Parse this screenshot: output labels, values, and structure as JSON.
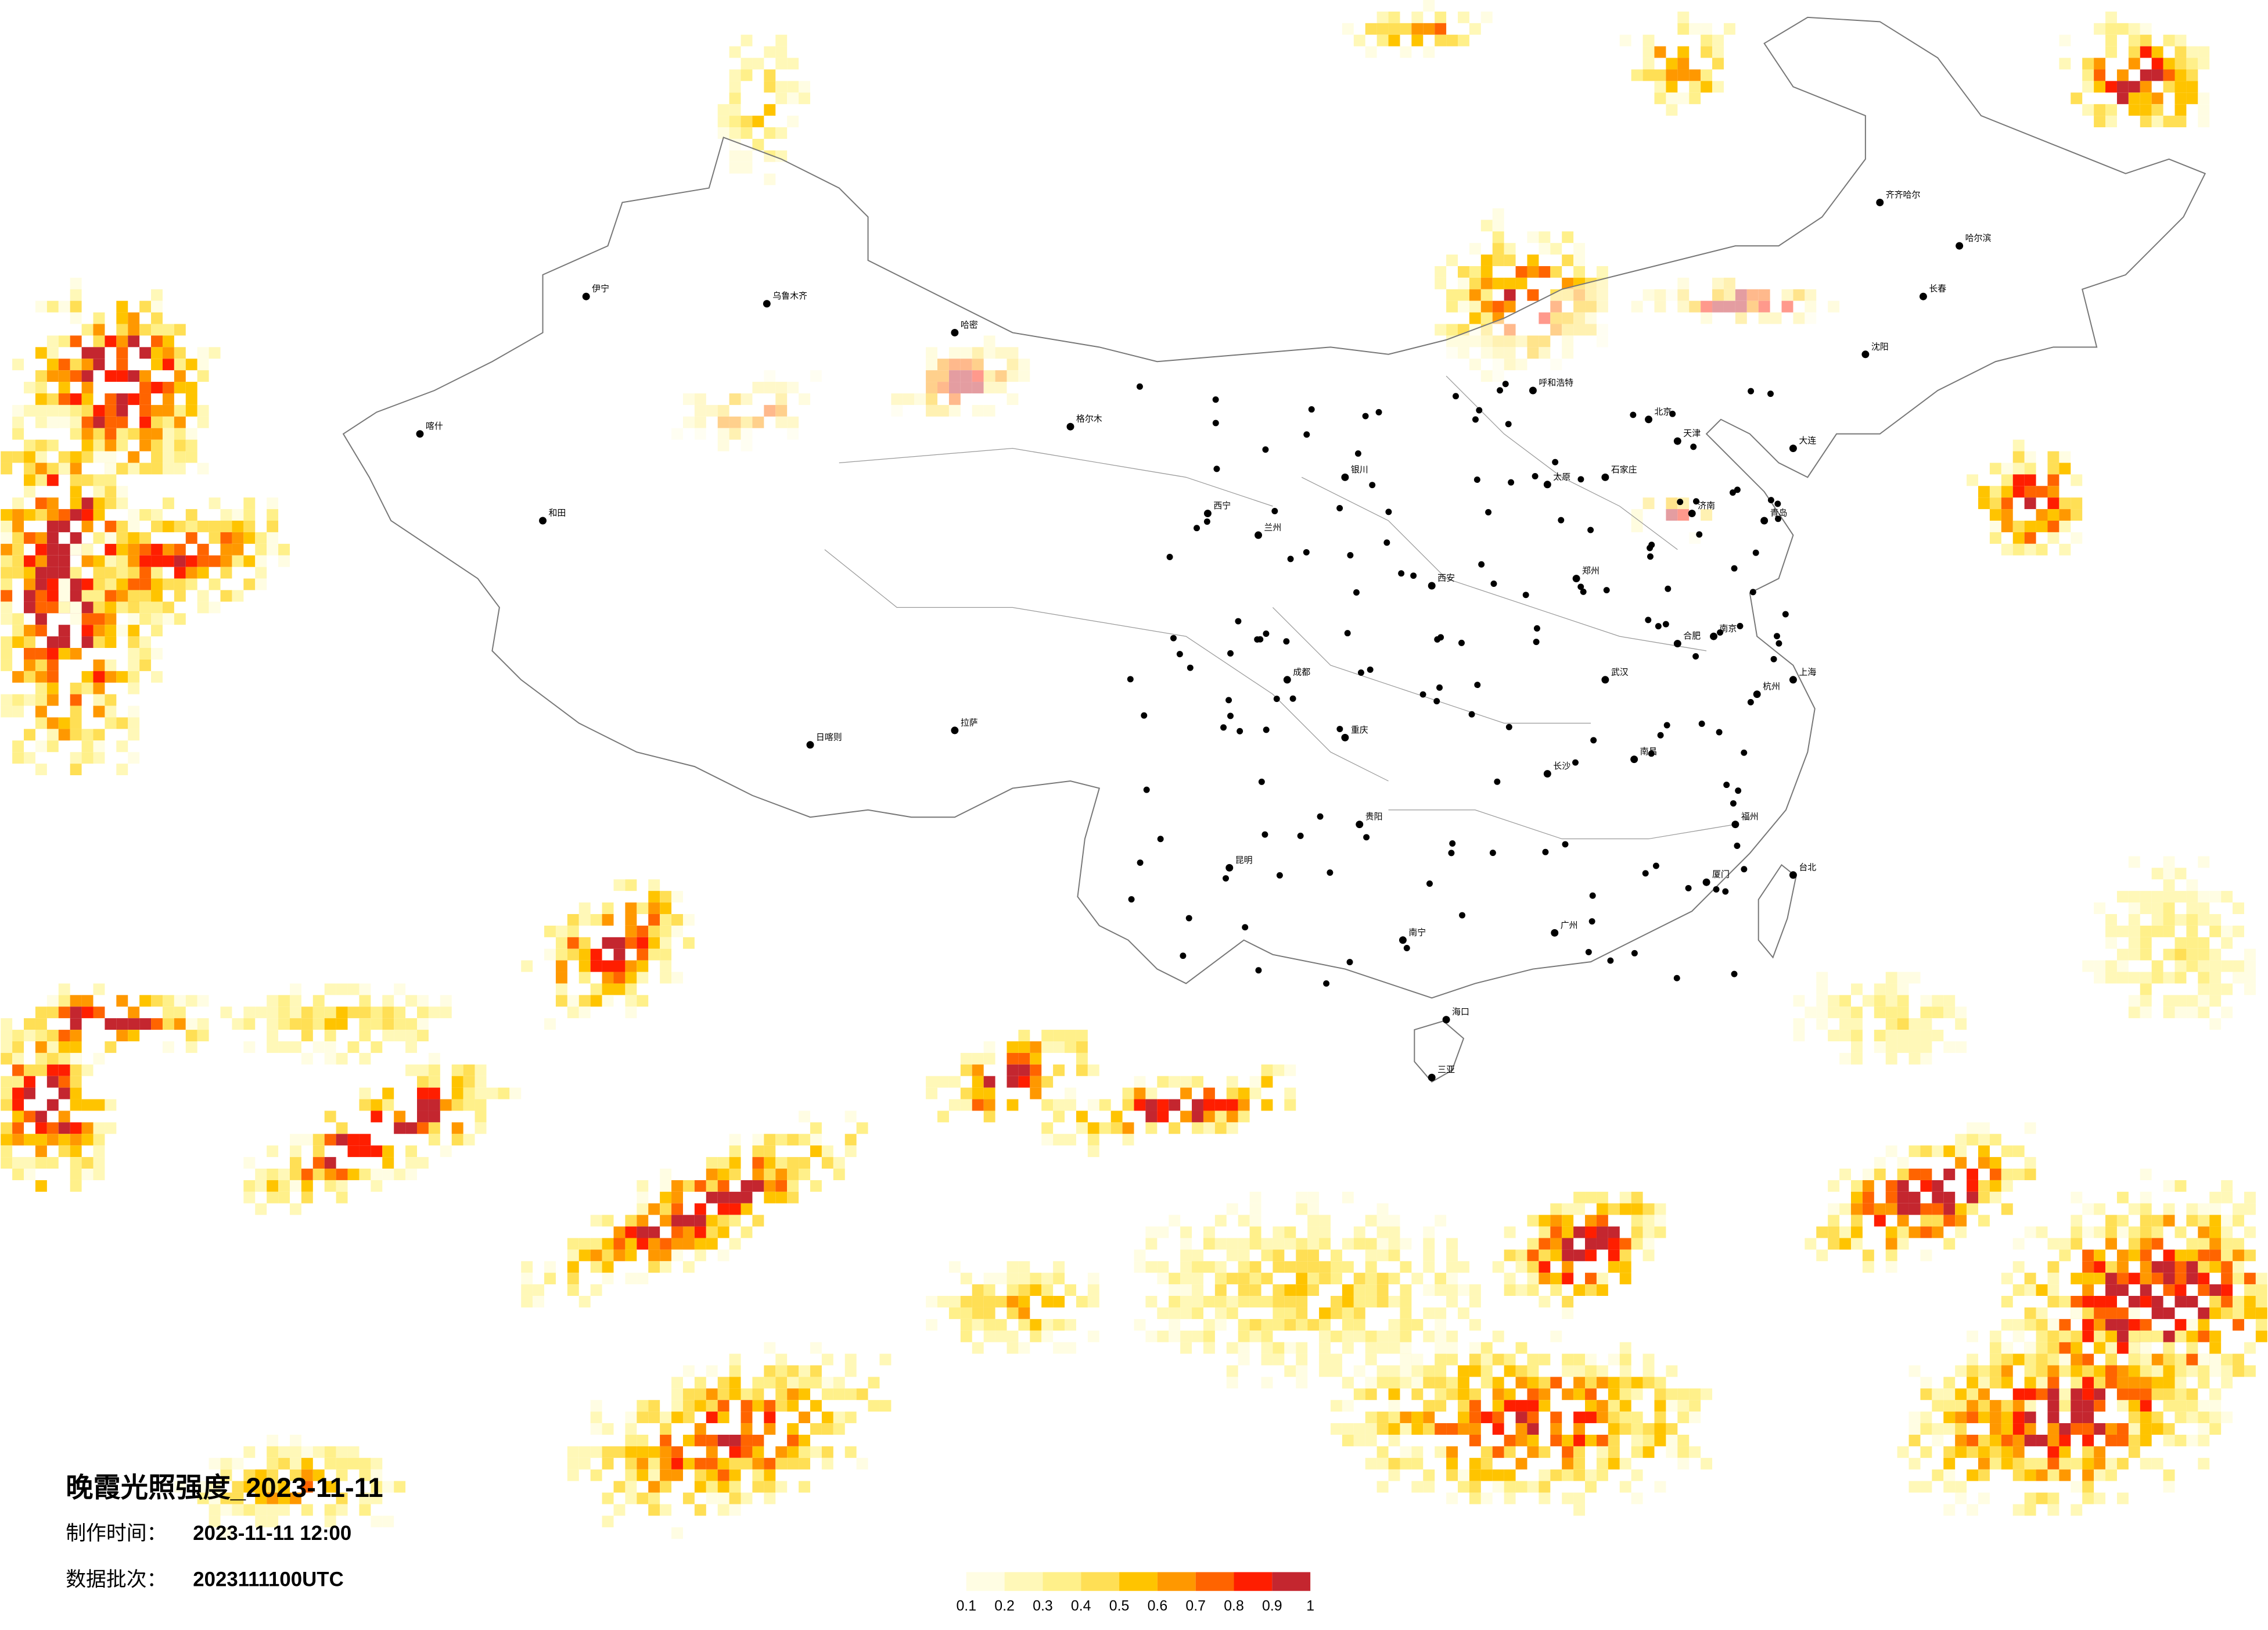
{
  "map": {
    "title": "晚霞光照强度_2023-11-11",
    "made_time": {
      "label": "制作时间：",
      "value": "2023-11-11 12:00"
    },
    "batch": {
      "label": "数据批次：",
      "value": "2023111100UTC"
    },
    "legend": {
      "ticks": [
        0.1,
        0.2,
        0.3,
        0.4,
        0.5,
        0.6,
        0.7,
        0.8,
        0.9,
        1
      ],
      "colors": [
        "#fffde3",
        "#fff8b8",
        "#fff08a",
        "#ffdf55",
        "#ffc400",
        "#ff9800",
        "#ff6400",
        "#ff1e00",
        "#c4262f"
      ]
    },
    "cities": [
      "哈尔滨",
      "长春",
      "沈阳",
      "呼和浩特",
      "石家庄",
      "太原",
      "济南",
      "郑州",
      "西安",
      "兰州",
      "西宁",
      "银川",
      "乌鲁木齐",
      "拉萨",
      "成都",
      "重庆",
      "武汉",
      "南京",
      "合肥",
      "杭州",
      "南昌",
      "长沙",
      "贵阳",
      "昆明",
      "南宁",
      "广州",
      "福州",
      "台北",
      "海口",
      "喀什",
      "和田",
      "哈密",
      "格尔木",
      "伊宁",
      "日喀则",
      "齐齐哈尔",
      "大连",
      "青岛",
      "厦门",
      "三亚",
      "北京",
      "天津",
      "上海"
    ]
  }
}
